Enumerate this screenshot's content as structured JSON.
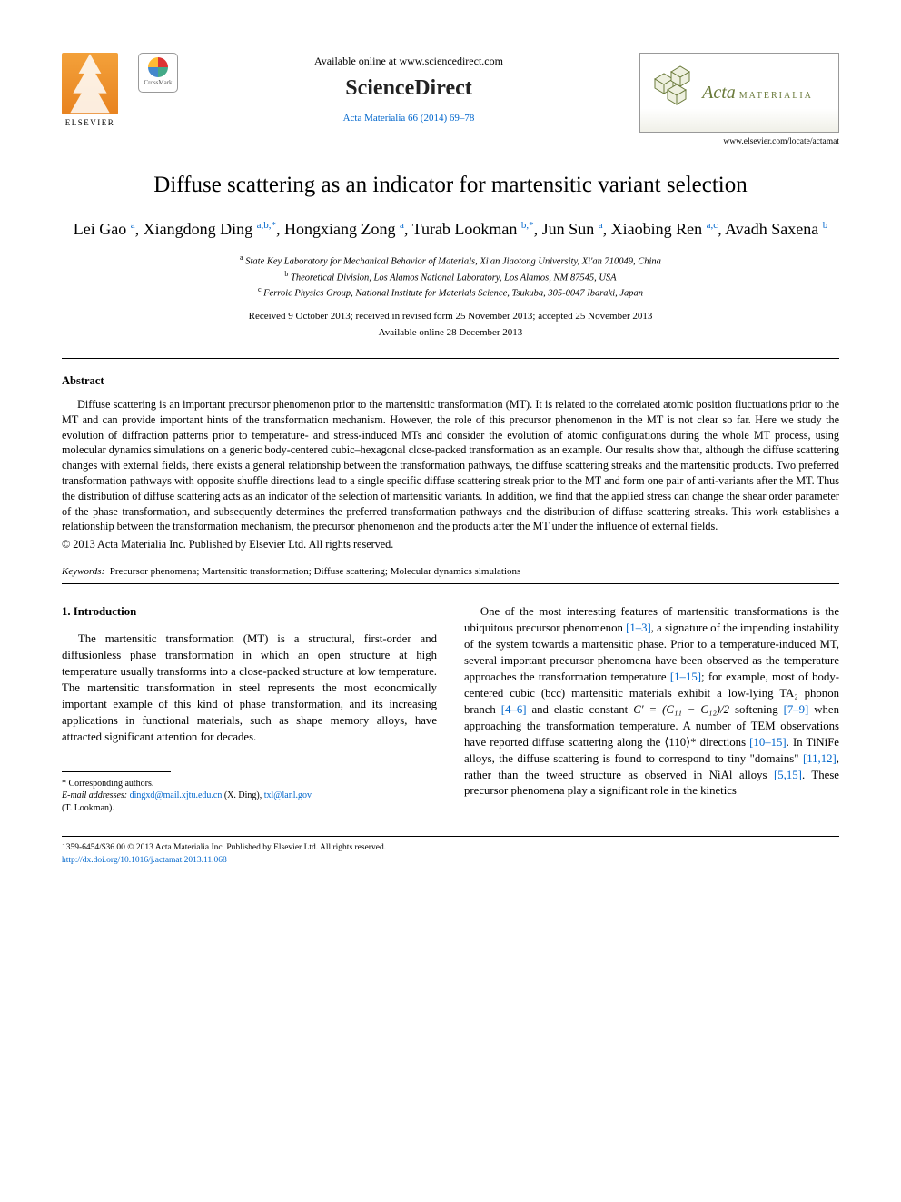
{
  "header": {
    "elsevier_label": "ELSEVIER",
    "crossmark_label": "CrossMark",
    "available_online": "Available online at www.sciencedirect.com",
    "sciencedirect": "ScienceDirect",
    "journal_ref": "Acta Materialia 66 (2014) 69–78",
    "acta_big": "Acta",
    "acta_small": "MATERIALIA",
    "locate": "www.elsevier.com/locate/actamat"
  },
  "title": "Diffuse scattering as an indicator for martensitic variant selection",
  "authors_html": "Lei Gao <sup>a</sup>, Xiangdong Ding <sup>a,b,*</sup>, Hongxiang Zong <sup>a</sup>, Turab Lookman <sup>b,*</sup>, Jun Sun <sup>a</sup>, Xiaobing Ren <sup>a,c</sup>, Avadh Saxena <sup>b</sup>",
  "affiliations": {
    "a": "State Key Laboratory for Mechanical Behavior of Materials, Xi'an Jiaotong University, Xi'an 710049, China",
    "b": "Theoretical Division, Los Alamos National Laboratory, Los Alamos, NM 87545, USA",
    "c": "Ferroic Physics Group, National Institute for Materials Science, Tsukuba, 305-0047 Ibaraki, Japan"
  },
  "dates": {
    "received": "Received 9 October 2013; received in revised form 25 November 2013; accepted 25 November 2013",
    "online": "Available online 28 December 2013"
  },
  "abstract": {
    "heading": "Abstract",
    "body": "Diffuse scattering is an important precursor phenomenon prior to the martensitic transformation (MT). It is related to the correlated atomic position fluctuations prior to the MT and can provide important hints of the transformation mechanism. However, the role of this precursor phenomenon in the MT is not clear so far. Here we study the evolution of diffraction patterns prior to temperature- and stress-induced MTs and consider the evolution of atomic configurations during the whole MT process, using molecular dynamics simulations on a generic body-centered cubic–hexagonal close-packed transformation as an example. Our results show that, although the diffuse scattering changes with external fields, there exists a general relationship between the transformation pathways, the diffuse scattering streaks and the martensitic products. Two preferred transformation pathways with opposite shuffle directions lead to a single specific diffuse scattering streak prior to the MT and form one pair of anti-variants after the MT. Thus the distribution of diffuse scattering acts as an indicator of the selection of martensitic variants. In addition, we find that the applied stress can change the shear order parameter of the phase transformation, and subsequently determines the preferred transformation pathways and the distribution of diffuse scattering streaks. This work establishes a relationship between the transformation mechanism, the precursor phenomenon and the products after the MT under the influence of external fields.",
    "copyright": "© 2013 Acta Materialia Inc. Published by Elsevier Ltd. All rights reserved."
  },
  "keywords": {
    "label": "Keywords:",
    "text": "Precursor phenomena; Martensitic transformation; Diffuse scattering; Molecular dynamics simulations"
  },
  "section1": {
    "heading": "1. Introduction",
    "p1": "The martensitic transformation (MT) is a structural, first-order and diffusionless phase transformation in which an open structure at high temperature usually transforms into a close-packed structure at low temperature. The martensitic transformation in steel represents the most economically important example of this kind of phase transformation, and its increasing applications in functional materials, such as shape memory alloys, have attracted significant attention for decades.",
    "p2a": "One of the most interesting features of martensitic transformations is the ubiquitous precursor phenomenon ",
    "ref1": "[1–3]",
    "p2b": ", a signature of the impending instability of the system towards a martensitic phase. Prior to a temperature-induced MT, several important precursor phenomena have been observed as the temperature approaches the transformation temperature ",
    "ref2": "[1–15]",
    "p2c": "; for example, most of body-centered cubic (bcc) martensitic materials exhibit a low-lying TA₂ phonon branch ",
    "ref3": "[4–6]",
    "p2d": " and elastic constant ",
    "c_expr": "C′ = (C₁₁ − C₁₂)/2",
    "p2e": " softening ",
    "ref4": "[7–9]",
    "p2f": " when approaching the transformation temperature. A number of TEM observations have reported diffuse scattering along the ⟨110⟩* directions ",
    "ref5": "[10–15]",
    "p2g": ". In TiNiFe alloys, the diffuse scattering is found to correspond to tiny \"domains\" ",
    "ref6": "[11,12]",
    "p2h": ", rather than the tweed structure as observed in NiAl alloys ",
    "ref7": "[5,15]",
    "p2i": ". These precursor phenomena play a significant role in the kinetics"
  },
  "footnotes": {
    "corr": "* Corresponding authors.",
    "email_label": "E-mail addresses:",
    "email1": "dingxd@mail.xjtu.edu.cn",
    "name1": "(X. Ding),",
    "email2": "txl@lanl.gov",
    "name2": "(T. Lookman)."
  },
  "bottom": {
    "line1": "1359-6454/$36.00 © 2013 Acta Materialia Inc. Published by Elsevier Ltd. All rights reserved.",
    "doi": "http://dx.doi.org/10.1016/j.actamat.2013.11.068"
  },
  "colors": {
    "link": "#0066cc",
    "text": "#000000",
    "elsevier_orange": "#e88320",
    "acta_green": "#6a7a3a"
  }
}
